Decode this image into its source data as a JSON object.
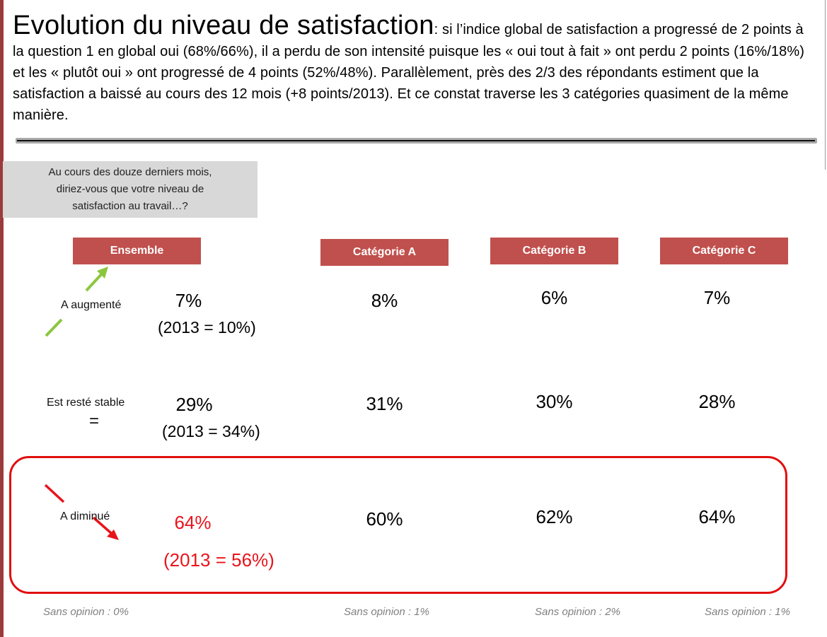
{
  "header": {
    "title": "Evolution du niveau de satisfaction",
    "body": ": si l’indice global de satisfaction a progressé de 2 points à la question 1 en global oui (68%/66%), il a perdu de son intensité puisque les « oui tout à fait » ont perdu 2 points (16%/18%) et les « plutôt oui » ont progressé de 4 points (52%/48%). Parallèlement, près des 2/3 des répondants estiment que la satisfaction a baissé au cours des 12 mois (+8 points/2013). Et ce constat traverse les 3 catégories quasiment de la même manière."
  },
  "question": {
    "line1": "Au cours des douze derniers mois,",
    "line2": "diriez-vous que votre niveau de",
    "line3": "satisfaction au travail…?"
  },
  "columns": [
    "Ensemble",
    "Catégorie A",
    "Catégorie B",
    "Catégorie C"
  ],
  "rows": [
    {
      "label": "A augmenté",
      "icon": "arrow-up-right-icon",
      "ensemble": "7%",
      "ensemble_2013": "(2013 = 10%)",
      "cat_a": "8%",
      "cat_b": "6%",
      "cat_c": "7%"
    },
    {
      "label": "Est resté stable",
      "symbol": "=",
      "ensemble": "29%",
      "ensemble_2013": "(2013 = 34%)",
      "cat_a": "31%",
      "cat_b": "30%",
      "cat_c": "28%"
    },
    {
      "label": "A diminué",
      "icon": "arrow-down-right-icon",
      "ensemble": "64%",
      "ensemble_2013": "(2013 = 56%)",
      "cat_a": "60%",
      "cat_b": "62%",
      "cat_c": "64%"
    }
  ],
  "sans_opinion": [
    "Sans opinion : 0%",
    "Sans opinion : 1%",
    "Sans opinion : 2%",
    "Sans opinion : 1%"
  ],
  "colors": {
    "header_bg": "#c0504d",
    "highlight": "#e10e0e",
    "increase_arrow": "#8cc63f",
    "accent_strip": "#9c3b3b"
  }
}
